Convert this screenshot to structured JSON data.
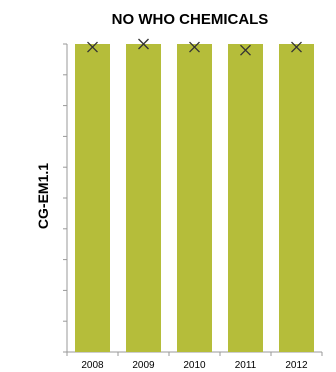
{
  "chart_data": {
    "type": "bar",
    "title": "NO WHO CHEMICALS",
    "ylabel": "CG-EM1.1",
    "xlabel": "",
    "categories": [
      "2008",
      "2009",
      "2010",
      "2011",
      "2012"
    ],
    "values": [
      100,
      100,
      100,
      100,
      100
    ],
    "markers": [
      99,
      100,
      99,
      98,
      99
    ],
    "marker_symbol": "x",
    "ylim": [
      0,
      100
    ],
    "grid": false,
    "bar_color": "#b5bd3a",
    "marker_color": "#333333"
  }
}
